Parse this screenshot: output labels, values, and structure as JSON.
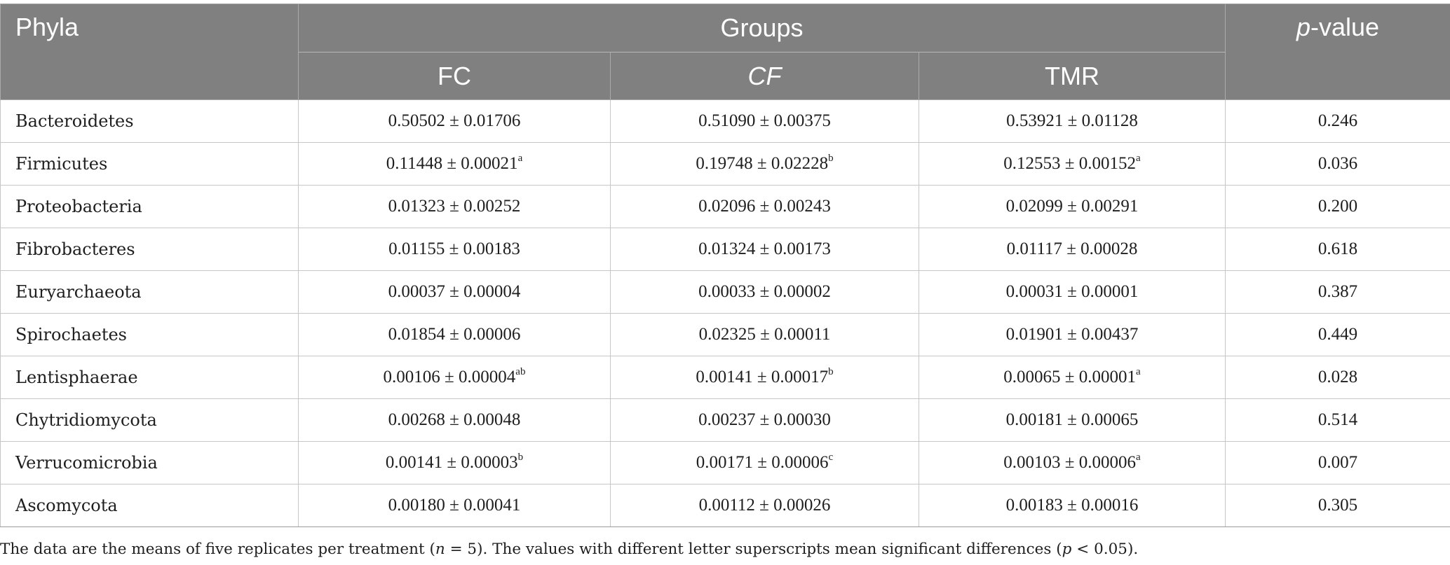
{
  "header": {
    "phyla": "Phyla",
    "groups": "Groups",
    "pvalue_italic": "p",
    "pvalue_rest": "-value",
    "sub": [
      "FC",
      "CF",
      "TMR"
    ]
  },
  "rows": [
    {
      "phylum": "Bacteroidetes",
      "cells": [
        {
          "v": "0.50502 ± 0.01706",
          "s": ""
        },
        {
          "v": "0.51090 ± 0.00375",
          "s": ""
        },
        {
          "v": "0.53921 ± 0.01128",
          "s": ""
        }
      ],
      "p": "0.246"
    },
    {
      "phylum": "Firmicutes",
      "cells": [
        {
          "v": "0.11448 ± 0.00021",
          "s": "a"
        },
        {
          "v": "0.19748 ± 0.02228",
          "s": "b"
        },
        {
          "v": "0.12553 ± 0.00152",
          "s": "a"
        }
      ],
      "p": "0.036"
    },
    {
      "phylum": "Proteobacteria",
      "cells": [
        {
          "v": "0.01323 ± 0.00252",
          "s": ""
        },
        {
          "v": "0.02096 ± 0.00243",
          "s": ""
        },
        {
          "v": "0.02099 ± 0.00291",
          "s": ""
        }
      ],
      "p": "0.200"
    },
    {
      "phylum": "Fibrobacteres",
      "cells": [
        {
          "v": "0.01155 ± 0.00183",
          "s": ""
        },
        {
          "v": "0.01324 ± 0.00173",
          "s": ""
        },
        {
          "v": "0.01117 ± 0.00028",
          "s": ""
        }
      ],
      "p": "0.618"
    },
    {
      "phylum": "Euryarchaeota",
      "cells": [
        {
          "v": "0.00037 ± 0.00004",
          "s": ""
        },
        {
          "v": "0.00033 ± 0.00002",
          "s": ""
        },
        {
          "v": "0.00031 ± 0.00001",
          "s": ""
        }
      ],
      "p": "0.387"
    },
    {
      "phylum": "Spirochaetes",
      "cells": [
        {
          "v": "0.01854 ± 0.00006",
          "s": ""
        },
        {
          "v": "0.02325 ± 0.00011",
          "s": ""
        },
        {
          "v": "0.01901 ± 0.00437",
          "s": ""
        }
      ],
      "p": "0.449"
    },
    {
      "phylum": "Lentisphaerae",
      "cells": [
        {
          "v": "0.00106 ± 0.00004",
          "s": "ab"
        },
        {
          "v": "0.00141 ± 0.00017",
          "s": "b"
        },
        {
          "v": "0.00065 ± 0.00001",
          "s": "a"
        }
      ],
      "p": "0.028"
    },
    {
      "phylum": "Chytridiomycota",
      "cells": [
        {
          "v": "0.00268 ± 0.00048",
          "s": ""
        },
        {
          "v": "0.00237 ± 0.00030",
          "s": ""
        },
        {
          "v": "0.00181 ± 0.00065",
          "s": ""
        }
      ],
      "p": "0.514"
    },
    {
      "phylum": "Verrucomicrobia",
      "cells": [
        {
          "v": "0.00141 ± 0.00003",
          "s": "b"
        },
        {
          "v": "0.00171 ± 0.00006",
          "s": "c"
        },
        {
          "v": "0.00103 ± 0.00006",
          "s": "a"
        }
      ],
      "p": "0.007"
    },
    {
      "phylum": "Ascomycota",
      "cells": [
        {
          "v": "0.00180 ± 0.00041",
          "s": ""
        },
        {
          "v": "0.00112 ± 0.00026",
          "s": ""
        },
        {
          "v": "0.00183 ± 0.00016",
          "s": ""
        }
      ],
      "p": "0.305"
    }
  ],
  "footnote": {
    "part1": "The data are the means of five replicates per treatment (",
    "n_italic": "n",
    "part2": " = 5). The values with different letter superscripts mean significant differences (",
    "p_italic": "p",
    "part3": " < 0.05)."
  }
}
